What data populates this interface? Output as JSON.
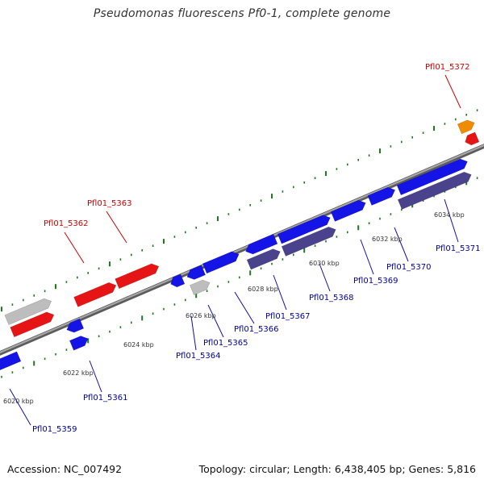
{
  "header": {
    "title": "Pseudomonas fluorescens Pf0-1, complete genome"
  },
  "footer": {
    "accession": "Accession: NC_007492",
    "summary": "Topology: circular; Length: 6,438,405 bp; Genes: 5,816"
  },
  "colors": {
    "blue": "#1414e6",
    "red": "#e61414",
    "grey": "#bdbdbd",
    "orange": "#f08c00",
    "purple": "#4a428c",
    "tick": "#1e7a1e",
    "backbone": "#7f7f7f",
    "label_red": "#cc0000",
    "label_blue": "#000099",
    "leader": "#1010aa"
  },
  "chart_data": {
    "type": "genome_map",
    "unit": "kbp",
    "scale_labels": [
      "6020 kbp",
      "6022 kbp",
      "6024 kbp",
      "6026 kbp",
      "6028 kbp",
      "6030 kbp",
      "6032 kbp",
      "6034 kbp"
    ],
    "genes": [
      {
        "label": "Pfl01_5359"
      },
      {
        "label": "Pfl01_5361"
      },
      {
        "label": "Pfl01_5362"
      },
      {
        "label": "Pfl01_5363"
      },
      {
        "label": "Pfl01_5364"
      },
      {
        "label": "Pfl01_5365"
      },
      {
        "label": "Pfl01_5366"
      },
      {
        "label": "Pfl01_5367"
      },
      {
        "label": "Pfl01_5368"
      },
      {
        "label": "Pfl01_5369"
      },
      {
        "label": "Pfl01_5370"
      },
      {
        "label": "Pfl01_5371"
      },
      {
        "label": "Pfl01_5372"
      }
    ]
  }
}
